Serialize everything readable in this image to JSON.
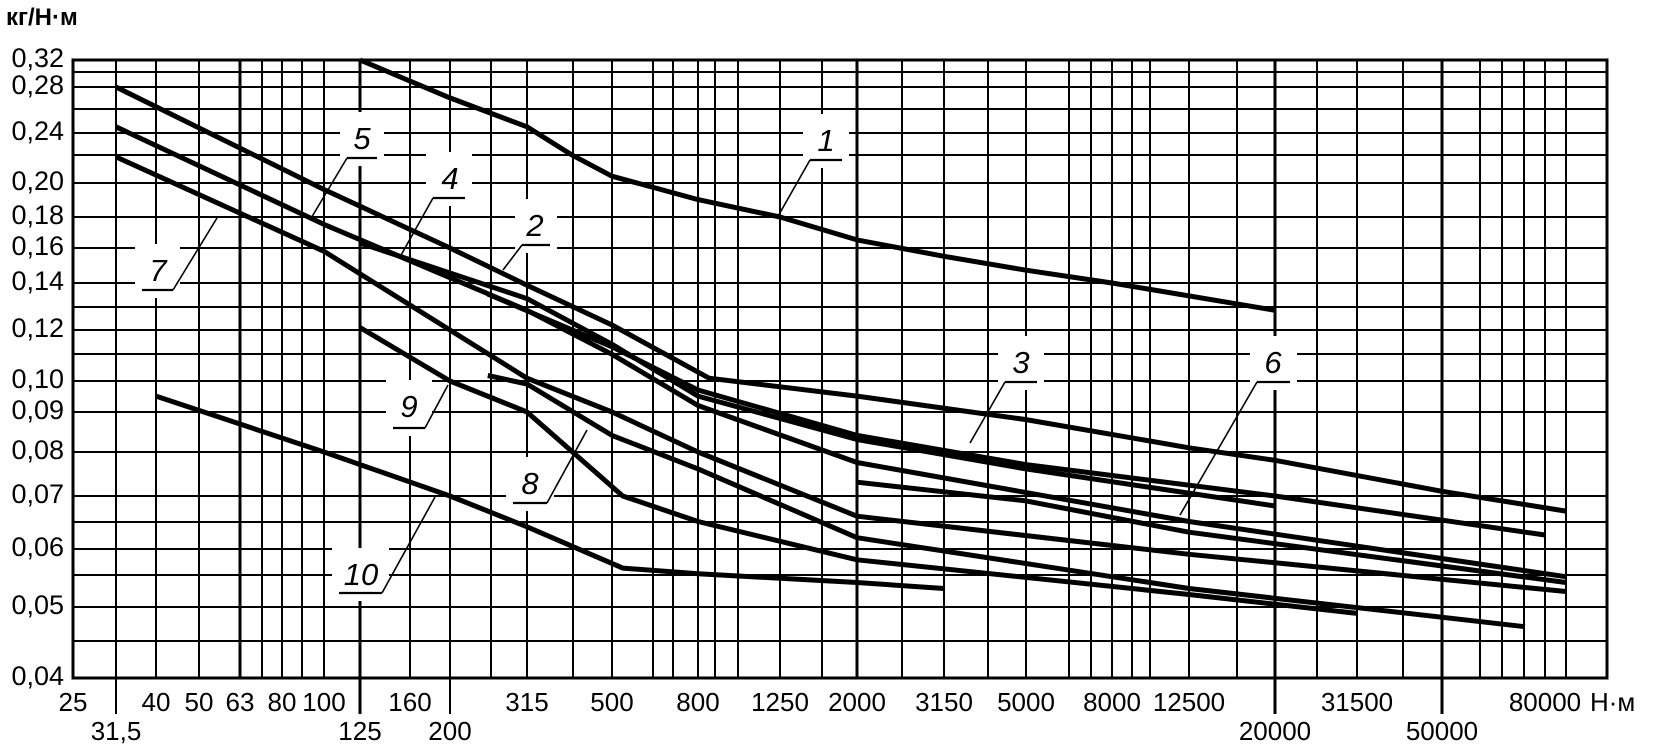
{
  "chart_data": {
    "type": "line",
    "title": "",
    "ylabel": "кг/Н·м",
    "xlabel": "Н·м",
    "x_scale": "log",
    "y_scale": "log",
    "xlim": [
      25,
      100000
    ],
    "ylim": [
      0.04,
      0.32
    ],
    "grid": true,
    "legend": "none (curves numbered inline)",
    "x_ticks": [
      {
        "value": 25,
        "label": "25"
      },
      {
        "value": 31.5,
        "label": "31,5"
      },
      {
        "value": 40,
        "label": "40"
      },
      {
        "value": 50,
        "label": "50"
      },
      {
        "value": 63,
        "label": "63"
      },
      {
        "value": 80,
        "label": "80"
      },
      {
        "value": 100,
        "label": "100"
      },
      {
        "value": 125,
        "label": "125"
      },
      {
        "value": 160,
        "label": "160"
      },
      {
        "value": 200,
        "label": "200"
      },
      {
        "value": 315,
        "label": "315"
      },
      {
        "value": 500,
        "label": "500"
      },
      {
        "value": 800,
        "label": "800"
      },
      {
        "value": 1250,
        "label": "1250"
      },
      {
        "value": 2000,
        "label": "2000"
      },
      {
        "value": 3150,
        "label": "3150"
      },
      {
        "value": 5000,
        "label": "5000"
      },
      {
        "value": 8000,
        "label": "8000"
      },
      {
        "value": 12500,
        "label": "12500"
      },
      {
        "value": 20000,
        "label": "20000"
      },
      {
        "value": 31500,
        "label": "31500"
      },
      {
        "value": 50000,
        "label": "50000"
      },
      {
        "value": 80000,
        "label": "80000"
      }
    ],
    "y_ticks": [
      {
        "value": 0.32,
        "label": "0,32"
      },
      {
        "value": 0.28,
        "label": "0,28"
      },
      {
        "value": 0.24,
        "label": "0,24"
      },
      {
        "value": 0.2,
        "label": "0,20"
      },
      {
        "value": 0.18,
        "label": "0,18"
      },
      {
        "value": 0.16,
        "label": "0,16"
      },
      {
        "value": 0.14,
        "label": "0,14"
      },
      {
        "value": 0.12,
        "label": "0,12"
      },
      {
        "value": 0.1,
        "label": "0,10"
      },
      {
        "value": 0.09,
        "label": "0,09"
      },
      {
        "value": 0.08,
        "label": "0,08"
      },
      {
        "value": 0.07,
        "label": "0,07"
      },
      {
        "value": 0.06,
        "label": "0,06"
      },
      {
        "value": 0.05,
        "label": "0,05"
      },
      {
        "value": 0.04,
        "label": "0,04"
      }
    ],
    "series": [
      {
        "name": "1",
        "points": [
          [
            125,
            0.32
          ],
          [
            200,
            0.27
          ],
          [
            315,
            0.245
          ],
          [
            400,
            0.222
          ],
          [
            500,
            0.205
          ],
          [
            800,
            0.19
          ],
          [
            1250,
            0.18
          ],
          [
            2000,
            0.165
          ],
          [
            3150,
            0.155
          ],
          [
            5000,
            0.147
          ],
          [
            8000,
            0.14
          ],
          [
            20000,
            0.128
          ]
        ]
      },
      {
        "name": "2",
        "points": [
          [
            31.5,
            0.28
          ],
          [
            100,
            0.196
          ],
          [
            200,
            0.16
          ],
          [
            315,
            0.139
          ],
          [
            500,
            0.122
          ],
          [
            850,
            0.101
          ],
          [
            2000,
            0.095
          ],
          [
            5000,
            0.088
          ],
          [
            12500,
            0.081
          ],
          [
            20000,
            0.078
          ],
          [
            50000,
            0.071
          ],
          [
            88000,
            0.067
          ]
        ]
      },
      {
        "name": "3",
        "points": [
          [
            250,
            0.135
          ],
          [
            500,
            0.113
          ],
          [
            800,
            0.097
          ],
          [
            2000,
            0.084
          ],
          [
            5000,
            0.077
          ],
          [
            20000,
            0.07
          ],
          [
            80000,
            0.0625
          ]
        ]
      },
      {
        "name": "4",
        "points": [
          [
            125,
            0.163
          ],
          [
            315,
            0.133
          ],
          [
            500,
            0.114
          ],
          [
            800,
            0.095
          ],
          [
            2000,
            0.083
          ],
          [
            5000,
            0.076
          ],
          [
            20000,
            0.068
          ]
        ]
      },
      {
        "name": "5",
        "points": [
          [
            31.5,
            0.245
          ],
          [
            100,
            0.175
          ],
          [
            315,
            0.128
          ],
          [
            500,
            0.11
          ],
          [
            800,
            0.092
          ],
          [
            2000,
            0.0775
          ],
          [
            12500,
            0.065
          ],
          [
            88000,
            0.055
          ]
        ]
      },
      {
        "name": "6",
        "points": [
          [
            2000,
            0.073
          ],
          [
            5000,
            0.069
          ],
          [
            12500,
            0.063
          ],
          [
            88000,
            0.054
          ]
        ]
      },
      {
        "name": "7",
        "points": [
          [
            31.5,
            0.22
          ],
          [
            100,
            0.158
          ],
          [
            315,
            0.101
          ],
          [
            500,
            0.09
          ],
          [
            800,
            0.08
          ],
          [
            2000,
            0.066
          ],
          [
            12500,
            0.059
          ],
          [
            88000,
            0.0525
          ]
        ]
      },
      {
        "name": "8",
        "points": [
          [
            250,
            0.102
          ],
          [
            315,
            0.099
          ],
          [
            500,
            0.084
          ],
          [
            800,
            0.076
          ],
          [
            2000,
            0.062
          ],
          [
            12500,
            0.053
          ],
          [
            73000,
            0.047
          ]
        ]
      },
      {
        "name": "9",
        "points": [
          [
            125,
            0.121
          ],
          [
            200,
            0.1
          ],
          [
            315,
            0.09
          ],
          [
            530,
            0.07
          ],
          [
            800,
            0.065
          ],
          [
            2000,
            0.058
          ],
          [
            12500,
            0.052
          ],
          [
            31500,
            0.049
          ]
        ]
      },
      {
        "name": "10",
        "points": [
          [
            40,
            0.095
          ],
          [
            100,
            0.08
          ],
          [
            200,
            0.07
          ],
          [
            315,
            0.064
          ],
          [
            530,
            0.0565
          ],
          [
            800,
            0.0555
          ],
          [
            2000,
            0.054
          ],
          [
            3150,
            0.053
          ]
        ]
      }
    ]
  }
}
